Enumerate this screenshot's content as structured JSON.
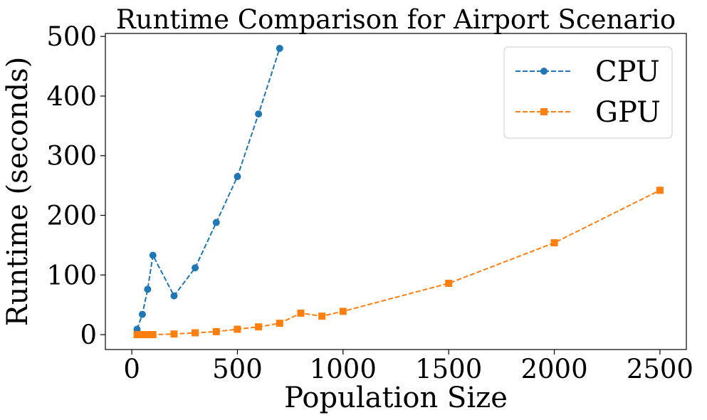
{
  "chart_data": {
    "type": "line",
    "title": "Runtime Comparison for Airport Scenario",
    "xlabel": "Population Size",
    "ylabel": "Runtime (seconds)",
    "xlim": [
      -125,
      2625
    ],
    "ylim": [
      -25,
      505
    ],
    "xticks": [
      0,
      500,
      1000,
      1500,
      2000,
      2500
    ],
    "yticks": [
      0,
      100,
      200,
      300,
      400,
      500
    ],
    "xtick_labels": [
      "0",
      "500",
      "1000",
      "1500",
      "2000",
      "2500"
    ],
    "ytick_labels": [
      "0",
      "100",
      "200",
      "300",
      "400",
      "500"
    ],
    "grid": false,
    "legend_position": "top-right",
    "series": [
      {
        "name": "CPU",
        "color": "#1f77b4",
        "marker": "circle",
        "line_style": "dashed",
        "x": [
          25,
          50,
          75,
          100,
          200,
          300,
          400,
          500,
          600,
          700
        ],
        "y": [
          9,
          34,
          76,
          133,
          65,
          112,
          188,
          265,
          370,
          480
        ]
      },
      {
        "name": "GPU",
        "color": "#ff7f0e",
        "marker": "square",
        "line_style": "dashed",
        "x": [
          25,
          50,
          75,
          100,
          200,
          300,
          400,
          500,
          600,
          700,
          800,
          900,
          1000,
          1500,
          2000,
          2500
        ],
        "y": [
          0,
          0,
          0,
          0,
          1,
          3,
          5,
          9,
          13,
          19,
          36,
          31,
          39,
          86,
          154,
          242
        ]
      }
    ]
  }
}
